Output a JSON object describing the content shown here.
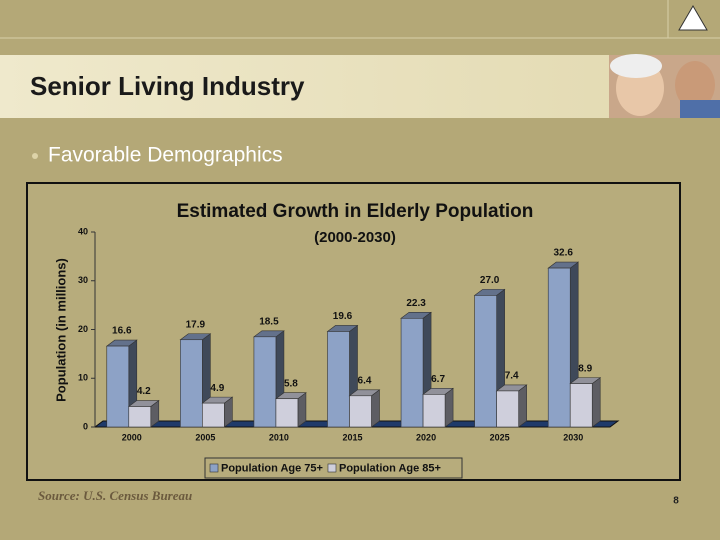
{
  "header": {
    "title": "Senior Living Industry"
  },
  "bullet": "Favorable Demographics",
  "source": "Source: U.S. Census Bureau",
  "page_number": "8",
  "chart_data": {
    "type": "bar",
    "title": "Estimated Growth in Elderly Population",
    "subtitle": "(2000-2030)",
    "y_label": "Population (in millions)",
    "categories": [
      "2000",
      "2005",
      "2010",
      "2015",
      "2020",
      "2025",
      "2030"
    ],
    "series": [
      {
        "name": "Population Age 75+",
        "color": "#8da2c6",
        "values": [
          16.6,
          17.9,
          18.5,
          19.6,
          22.3,
          27.0,
          32.6
        ],
        "value_labels": [
          "16.6",
          "17.9",
          "18.5",
          "19.6",
          "22.3",
          "27.0",
          "32.6"
        ]
      },
      {
        "name": "Population Age 85+",
        "color": "#cfcfdc",
        "values": [
          4.2,
          4.9,
          5.8,
          6.4,
          6.7,
          7.4,
          8.9
        ]
      }
    ],
    "ylim": [
      0,
      40
    ],
    "yticks": [
      0,
      10,
      20,
      30,
      40
    ],
    "legend": "bottom"
  }
}
